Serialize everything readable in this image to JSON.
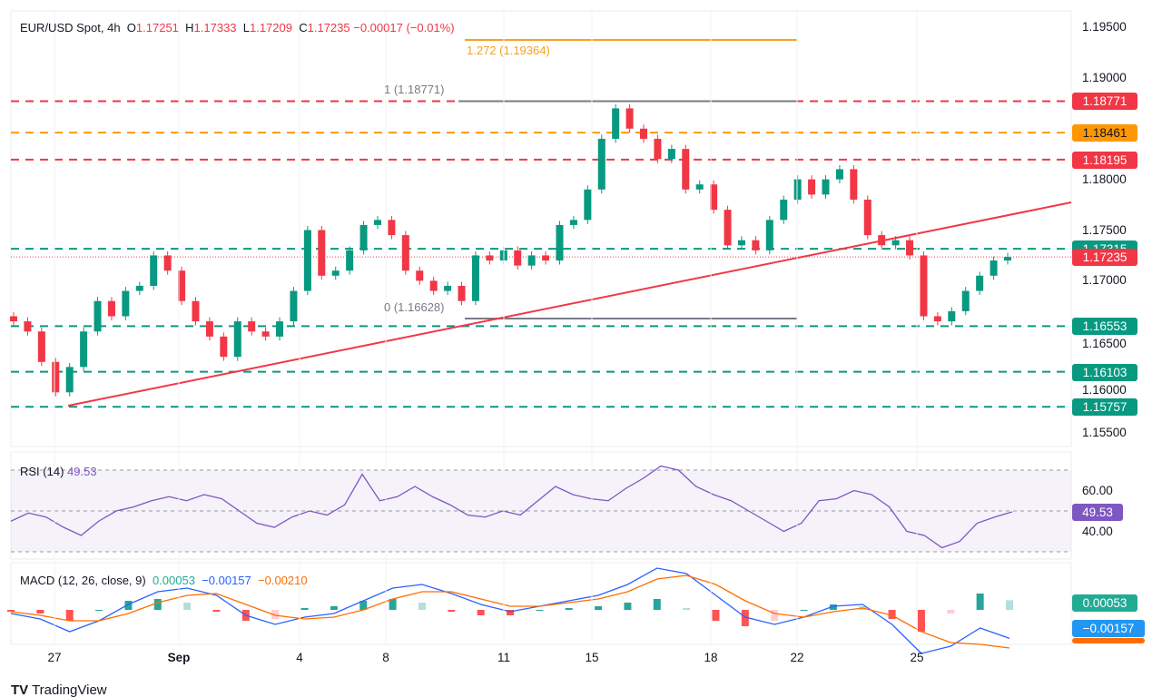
{
  "header": {
    "symbol": "EUR/USD Spot, 4h",
    "o_label": "O",
    "o": "1.17251",
    "h_label": "H",
    "h": "1.17333",
    "l_label": "L",
    "l": "1.17209",
    "c_label": "C",
    "c": "1.17235",
    "change": "−0.00017 (−0.01%)"
  },
  "colors": {
    "up": "#089981",
    "down": "#f23645",
    "orange": "#ff9800",
    "rsi": "#7e57c2",
    "macd": "#2962ff",
    "signal": "#ff6d00"
  },
  "fib": {
    "level_1272": "1.272 (1.19364)",
    "level_1": "1 (1.18771)",
    "level_0": "0 (1.16628)"
  },
  "price_axis": [
    "1.19500",
    "1.19000",
    "1.18000",
    "1.17500",
    "1.17000",
    "1.16500",
    "1.16000",
    "1.15500"
  ],
  "levels": [
    {
      "value": "1.18771",
      "color": "#f23645"
    },
    {
      "value": "1.18461",
      "color": "#ff9800"
    },
    {
      "value": "1.18195",
      "color": "#f23645"
    },
    {
      "value": "1.17315",
      "color": "#089981"
    },
    {
      "value": "1.16553",
      "color": "#089981"
    },
    {
      "value": "1.16103",
      "color": "#089981"
    },
    {
      "value": "1.15757",
      "color": "#089981"
    }
  ],
  "current_price": "1.17235",
  "rsi": {
    "title": "RSI (14)",
    "value": "49.53",
    "axis": [
      "60.00",
      "40.00"
    ]
  },
  "macd": {
    "title": "MACD (12, 26, close, 9)",
    "hist": "0.00053",
    "macd": "−0.00157",
    "signal": "−0.00210"
  },
  "date_ticks": [
    "27",
    "Sep",
    "4",
    "8",
    "11",
    "15",
    "18",
    "22",
    "25"
  ],
  "brand": "TradingView",
  "chart_data": {
    "type": "candlestick",
    "title": "EUR/USD Spot, 4h",
    "ylim": [
      1.155,
      1.195
    ],
    "closes": [
      1.166,
      1.165,
      1.162,
      1.159,
      1.1615,
      1.165,
      1.168,
      1.1665,
      1.169,
      1.1695,
      1.1725,
      1.171,
      1.168,
      1.166,
      1.1645,
      1.1625,
      1.166,
      1.165,
      1.1645,
      1.166,
      1.169,
      1.175,
      1.1705,
      1.171,
      1.173,
      1.1755,
      1.176,
      1.1745,
      1.171,
      1.17,
      1.169,
      1.1695,
      1.168,
      1.1725,
      1.172,
      1.173,
      1.1715,
      1.1725,
      1.172,
      1.1755,
      1.176,
      1.179,
      1.184,
      1.187,
      1.185,
      1.184,
      1.182,
      1.183,
      1.179,
      1.1795,
      1.177,
      1.1735,
      1.174,
      1.173,
      1.176,
      1.178,
      1.18,
      1.1785,
      1.18,
      1.181,
      1.178,
      1.1745,
      1.1735,
      1.174,
      1.1725,
      1.1665,
      1.166,
      1.167,
      1.169,
      1.1705,
      1.172,
      1.17235
    ],
    "rsi_values": [
      45,
      49,
      47,
      42,
      38,
      45,
      50,
      52,
      55,
      57,
      55,
      58,
      56,
      50,
      44,
      42,
      47,
      50,
      48,
      53,
      68,
      55,
      57,
      62,
      57,
      53,
      48,
      47,
      50,
      48,
      55,
      62,
      58,
      56,
      55,
      61,
      66,
      72,
      70,
      62,
      58,
      55,
      50,
      45,
      40,
      44,
      55,
      56,
      60,
      58,
      52,
      40,
      38,
      32,
      35,
      44,
      47,
      49.53
    ],
    "macd_values": [
      -0.0002,
      -0.0005,
      -0.0012,
      -0.0006,
      0.0003,
      0.001,
      0.0012,
      0.0008,
      -0.0003,
      -0.0008,
      -0.0004,
      -0.0002,
      0.0005,
      0.0012,
      0.0014,
      0.0009,
      0.0003,
      -0.0001,
      0.0002,
      0.0005,
      0.0008,
      0.0014,
      0.0023,
      0.002,
      0.0008,
      -0.0004,
      -0.0008,
      -0.0004,
      0.0002,
      0.0003,
      -0.0008,
      -0.0024,
      -0.002,
      -0.001,
      -0.00157
    ],
    "signal_values": [
      -0.0001,
      -0.0003,
      -0.0006,
      -0.0006,
      -0.0002,
      0.0004,
      0.0008,
      0.0009,
      0.0003,
      -0.0003,
      -0.0005,
      -0.0004,
      0.0,
      0.0006,
      0.001,
      0.001,
      0.0006,
      0.0002,
      0.0002,
      0.0004,
      0.0006,
      0.001,
      0.0017,
      0.0019,
      0.0014,
      0.0005,
      -0.0002,
      -0.0004,
      -0.0001,
      0.0001,
      -0.0003,
      -0.0012,
      -0.0018,
      -0.0019,
      -0.0021
    ]
  }
}
